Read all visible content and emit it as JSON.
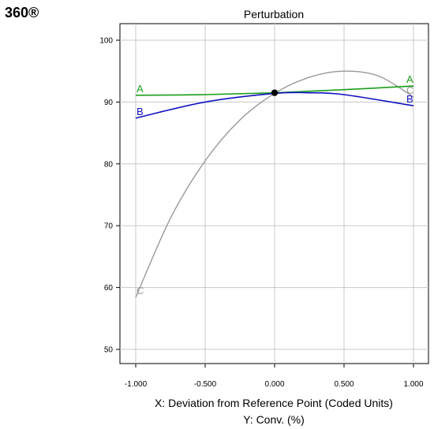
{
  "brand": {
    "logo_text": "360®"
  },
  "chart_data": {
    "type": "line",
    "title": "Perturbation",
    "xlabel": "X: Deviation from Reference Point (Coded Units)",
    "ylabel2": "Y: Conv. (%)",
    "xlim": [
      -1.0,
      1.0
    ],
    "ylim": [
      45,
      103
    ],
    "xticks": [
      "-1.000",
      "-0.500",
      "0.000",
      "0.500",
      "1.000"
    ],
    "yticks": [
      50,
      60,
      70,
      80,
      90,
      100
    ],
    "grid": true,
    "series": [
      {
        "name": "A",
        "color": "#1a9e1a",
        "points": [
          [
            -1.0,
            91.1
          ],
          [
            -0.5,
            91.2
          ],
          [
            0.0,
            91.5
          ],
          [
            0.5,
            92.0
          ],
          [
            1.0,
            92.6
          ]
        ],
        "end_labels": [
          "A",
          "A"
        ]
      },
      {
        "name": "B",
        "color": "#1010c0",
        "points": [
          [
            -1.0,
            87.4
          ],
          [
            -0.5,
            90.0
          ],
          [
            0.0,
            91.4
          ],
          [
            0.25,
            91.5
          ],
          [
            0.5,
            91.2
          ],
          [
            1.0,
            89.4
          ]
        ],
        "end_labels": [
          "B",
          "B"
        ]
      },
      {
        "name": "C",
        "color": "#999999",
        "points": [
          [
            -1.0,
            58.4
          ],
          [
            -0.75,
            71.2
          ],
          [
            -0.5,
            80.5
          ],
          [
            -0.25,
            87.1
          ],
          [
            0.0,
            91.4
          ],
          [
            0.25,
            94.0
          ],
          [
            0.5,
            95.0
          ],
          [
            0.75,
            94.2
          ],
          [
            1.0,
            90.8
          ]
        ],
        "end_labels": [
          "C",
          "C"
        ]
      }
    ],
    "reference_point": {
      "x": 0.0,
      "y": 91.5
    }
  }
}
